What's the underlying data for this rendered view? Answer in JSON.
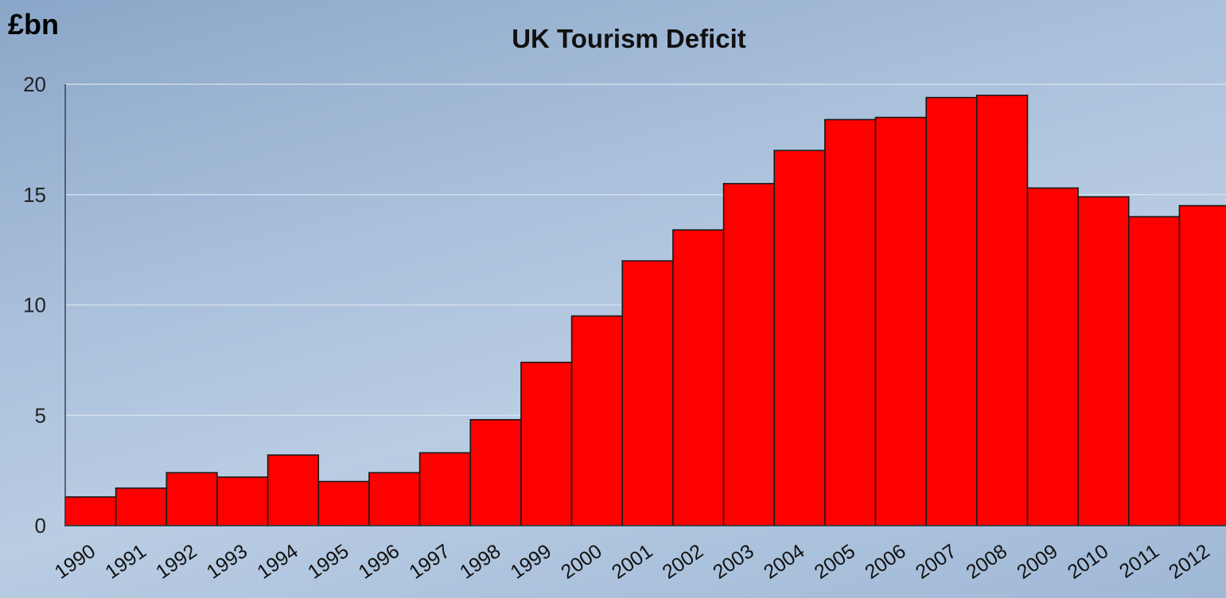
{
  "unit_label": "£bn",
  "chart_data": {
    "type": "bar",
    "title": "UK Tourism Deficit",
    "xlabel": "",
    "ylabel": "£bn",
    "categories": [
      "1990",
      "1991",
      "1992",
      "1993",
      "1994",
      "1995",
      "1996",
      "1997",
      "1998",
      "1999",
      "2000",
      "2001",
      "2002",
      "2003",
      "2004",
      "2005",
      "2006",
      "2007",
      "2008",
      "2009",
      "2010",
      "2011",
      "2012"
    ],
    "values": [
      1.3,
      1.7,
      2.4,
      2.2,
      3.2,
      2.0,
      2.4,
      3.3,
      4.8,
      7.4,
      9.5,
      12.0,
      13.4,
      15.5,
      17.0,
      18.4,
      18.5,
      19.4,
      19.5,
      15.3,
      14.9,
      14.0,
      14.5
    ],
    "ylim": [
      0,
      20
    ],
    "yticks": [
      0,
      5,
      10,
      15,
      20
    ],
    "grid": true,
    "bar_color": "#ff0000",
    "bar_edge_color": "#1a1a1a"
  }
}
